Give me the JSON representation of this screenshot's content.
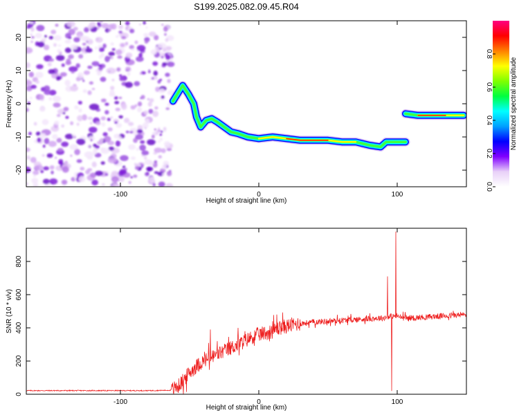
{
  "title": "S199.2025.082.09.45.R04",
  "chart_data": [
    {
      "type": "heatmap",
      "xlabel": "Height of straight line (km)",
      "ylabel": "Frequency (Hz)",
      "xlim": [
        -168,
        150
      ],
      "ylim": [
        -25,
        25
      ],
      "xticks": [
        -100,
        0,
        100
      ],
      "yticks": [
        -20,
        -10,
        0,
        10,
        20
      ],
      "colorbar": {
        "label": "Normalized spectral amplitude",
        "range": [
          0,
          1
        ],
        "ticks": [
          "0.0",
          "0.2",
          "0.4",
          "0.6",
          "0.8"
        ],
        "colormap": [
          "#ffffff",
          "#e8d0f8",
          "#8000ff",
          "#0000ff",
          "#00a0ff",
          "#00ffff",
          "#00ff40",
          "#80ff00",
          "#ffff00",
          "#ff8000",
          "#ff0000",
          "#ff0080"
        ]
      },
      "noise_region_x": [
        -168,
        -63
      ],
      "ridge": [
        {
          "x": -62,
          "f": 0.8
        },
        {
          "x": -58,
          "f": 3.5
        },
        {
          "x": -55,
          "f": 5.5
        },
        {
          "x": -51,
          "f": 3.0
        },
        {
          "x": -47,
          "f": 0.0
        },
        {
          "x": -45,
          "f": -4.0
        },
        {
          "x": -42,
          "f": -7.0
        },
        {
          "x": -38,
          "f": -5.0
        },
        {
          "x": -34,
          "f": -4.5
        },
        {
          "x": -30,
          "f": -5.5
        },
        {
          "x": -25,
          "f": -7.0
        },
        {
          "x": -20,
          "f": -8.5
        },
        {
          "x": -15,
          "f": -9.0
        },
        {
          "x": -8,
          "f": -10.0
        },
        {
          "x": 0,
          "f": -10.5
        },
        {
          "x": 10,
          "f": -10.0
        },
        {
          "x": 20,
          "f": -10.5
        },
        {
          "x": 30,
          "f": -11.0
        },
        {
          "x": 40,
          "f": -11.0
        },
        {
          "x": 50,
          "f": -11.0
        },
        {
          "x": 60,
          "f": -11.5
        },
        {
          "x": 70,
          "f": -11.5
        },
        {
          "x": 80,
          "f": -12.5
        },
        {
          "x": 88,
          "f": -13.0
        },
        {
          "x": 92,
          "f": -11.5
        },
        {
          "x": 100,
          "f": -11.5
        },
        {
          "x": 106,
          "f": -11.5
        }
      ],
      "ridge2": [
        {
          "x": 106,
          "f": -3.0
        },
        {
          "x": 115,
          "f": -3.5
        },
        {
          "x": 125,
          "f": -3.5
        },
        {
          "x": 135,
          "f": -3.5
        },
        {
          "x": 148,
          "f": -3.5
        }
      ]
    },
    {
      "type": "line",
      "xlabel": "Height of straight line (km)",
      "ylabel": "SNR (10 * v/v)",
      "xlim": [
        -168,
        150
      ],
      "ylim": [
        0,
        1000
      ],
      "xticks": [
        -100,
        0,
        100
      ],
      "yticks": [
        0,
        200,
        400,
        600,
        800
      ],
      "series": [
        {
          "color": "#ee2020",
          "points": [
            [
              -168,
              22
            ],
            [
              -140,
              22
            ],
            [
              -120,
              22
            ],
            [
              -100,
              22
            ],
            [
              -80,
              22
            ],
            [
              -64,
              24
            ],
            [
              -58,
              50
            ],
            [
              -54,
              90
            ],
            [
              -50,
              130
            ],
            [
              -45,
              170
            ],
            [
              -40,
              200
            ],
            [
              -35,
              220
            ],
            [
              -30,
              240
            ],
            [
              -25,
              260
            ],
            [
              -20,
              280
            ],
            [
              -15,
              300
            ],
            [
              -10,
              320
            ],
            [
              -5,
              345
            ],
            [
              0,
              360
            ],
            [
              5,
              370
            ],
            [
              10,
              380
            ],
            [
              15,
              400
            ],
            [
              20,
              410
            ],
            [
              25,
              420
            ],
            [
              30,
              425
            ],
            [
              35,
              430
            ],
            [
              40,
              435
            ],
            [
              50,
              440
            ],
            [
              60,
              445
            ],
            [
              70,
              450
            ],
            [
              80,
              455
            ],
            [
              90,
              460
            ],
            [
              95,
              470
            ],
            [
              100,
              470
            ],
            [
              105,
              460
            ],
            [
              110,
              460
            ],
            [
              120,
              465
            ],
            [
              130,
              470
            ],
            [
              140,
              475
            ],
            [
              150,
              480
            ]
          ],
          "spikes": [
            {
              "x": -35,
              "y": 390
            },
            {
              "x": -30,
              "y": 320
            },
            {
              "x": -15,
              "y": 400
            },
            {
              "x": -10,
              "y": 380
            },
            {
              "x": 10,
              "y": 440
            },
            {
              "x": 13,
              "y": 480
            },
            {
              "x": 93,
              "y": 710
            },
            {
              "x": 96,
              "y": 20
            },
            {
              "x": 99,
              "y": 980
            }
          ]
        }
      ]
    }
  ]
}
